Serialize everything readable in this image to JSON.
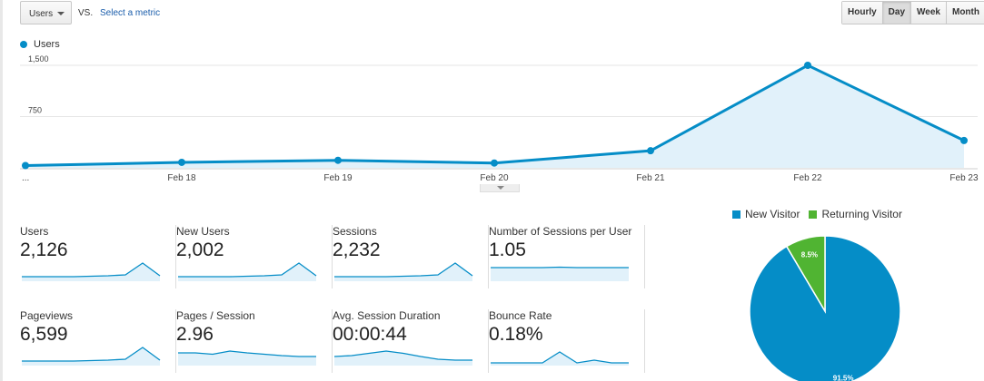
{
  "toolbar": {
    "metric_select": "Users",
    "vs_label": "VS.",
    "select_metric_link": "Select a metric",
    "periods": [
      {
        "label": "Hourly",
        "active": false
      },
      {
        "label": "Day",
        "active": true
      },
      {
        "label": "Week",
        "active": false
      },
      {
        "label": "Month",
        "active": false
      }
    ]
  },
  "colors": {
    "primary": "#058dc7",
    "fill": "#e1f1fa",
    "returning": "#50b432"
  },
  "chart_data": [
    {
      "type": "area",
      "series": [
        {
          "name": "Users",
          "values": [
            33,
            80,
            110,
            70,
            250,
            1500,
            400
          ]
        }
      ],
      "categories": [
        "...",
        "Feb 18",
        "Feb 19",
        "Feb 20",
        "Feb 21",
        "Feb 22",
        "Feb 23"
      ],
      "y_ticks": [
        "1,500",
        "750"
      ],
      "ylim": [
        0,
        1500
      ],
      "grid": true,
      "legend": "top-left"
    },
    {
      "type": "pie",
      "series": [
        {
          "name": "New Visitor",
          "value": 91.5,
          "label": "91.5%"
        },
        {
          "name": "Returning Visitor",
          "value": 8.5,
          "label": "8.5%"
        }
      ],
      "legend": "top"
    }
  ],
  "metrics": [
    {
      "title": "Users",
      "value": "2,126",
      "spark": [
        10,
        10,
        10,
        10,
        11,
        12,
        14,
        40,
        12
      ]
    },
    {
      "title": "New Users",
      "value": "2,002",
      "spark": [
        10,
        10,
        10,
        10,
        11,
        12,
        14,
        40,
        12
      ]
    },
    {
      "title": "Sessions",
      "value": "2,232",
      "spark": [
        10,
        10,
        10,
        10,
        11,
        12,
        14,
        40,
        12
      ]
    },
    {
      "title": "Number of Sessions per User",
      "value": "1.05",
      "spark": [
        30,
        30,
        30,
        30,
        31,
        30,
        30,
        30,
        30
      ]
    },
    {
      "title": "Pageviews",
      "value": "6,599",
      "spark": [
        10,
        10,
        10,
        10,
        11,
        12,
        14,
        40,
        12
      ]
    },
    {
      "title": "Pages / Session",
      "value": "2.96",
      "spark": [
        28,
        28,
        25,
        32,
        28,
        25,
        22,
        20,
        20
      ]
    },
    {
      "title": "Avg. Session Duration",
      "value": "00:00:44",
      "spark": [
        20,
        22,
        27,
        32,
        27,
        20,
        14,
        12,
        12
      ]
    },
    {
      "title": "Bounce Rate",
      "value": "0.18%",
      "spark": [
        6,
        6,
        6,
        6,
        30,
        6,
        12,
        6,
        6
      ]
    }
  ]
}
